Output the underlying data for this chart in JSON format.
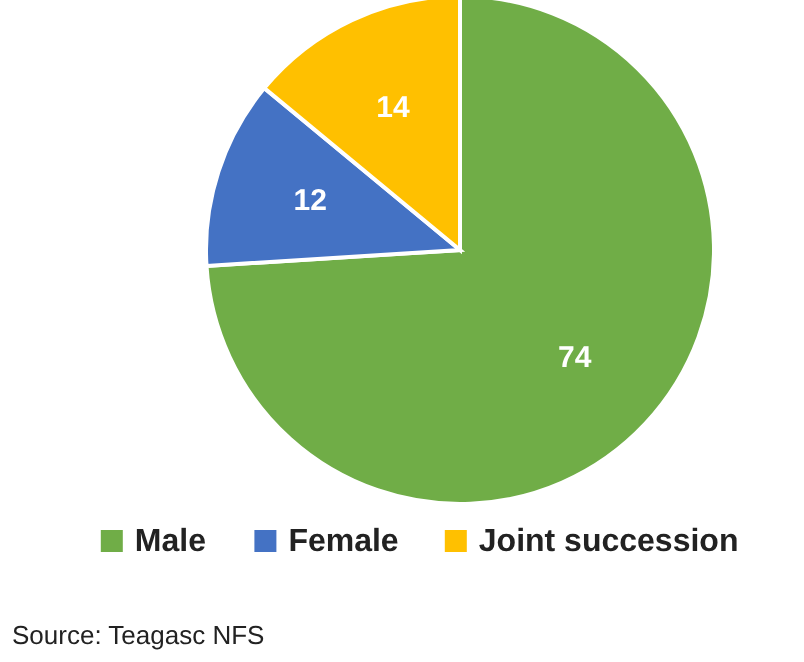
{
  "chart_data": {
    "type": "pie",
    "categories": [
      "Male",
      "Female",
      "Joint succession"
    ],
    "values": [
      74,
      12,
      14
    ],
    "colors": [
      "#70ad47",
      "#4472c4",
      "#ffc000"
    ],
    "data_labels": true,
    "legend": "bottom",
    "annotations": [
      "Source: Teagasc NFS"
    ]
  }
}
